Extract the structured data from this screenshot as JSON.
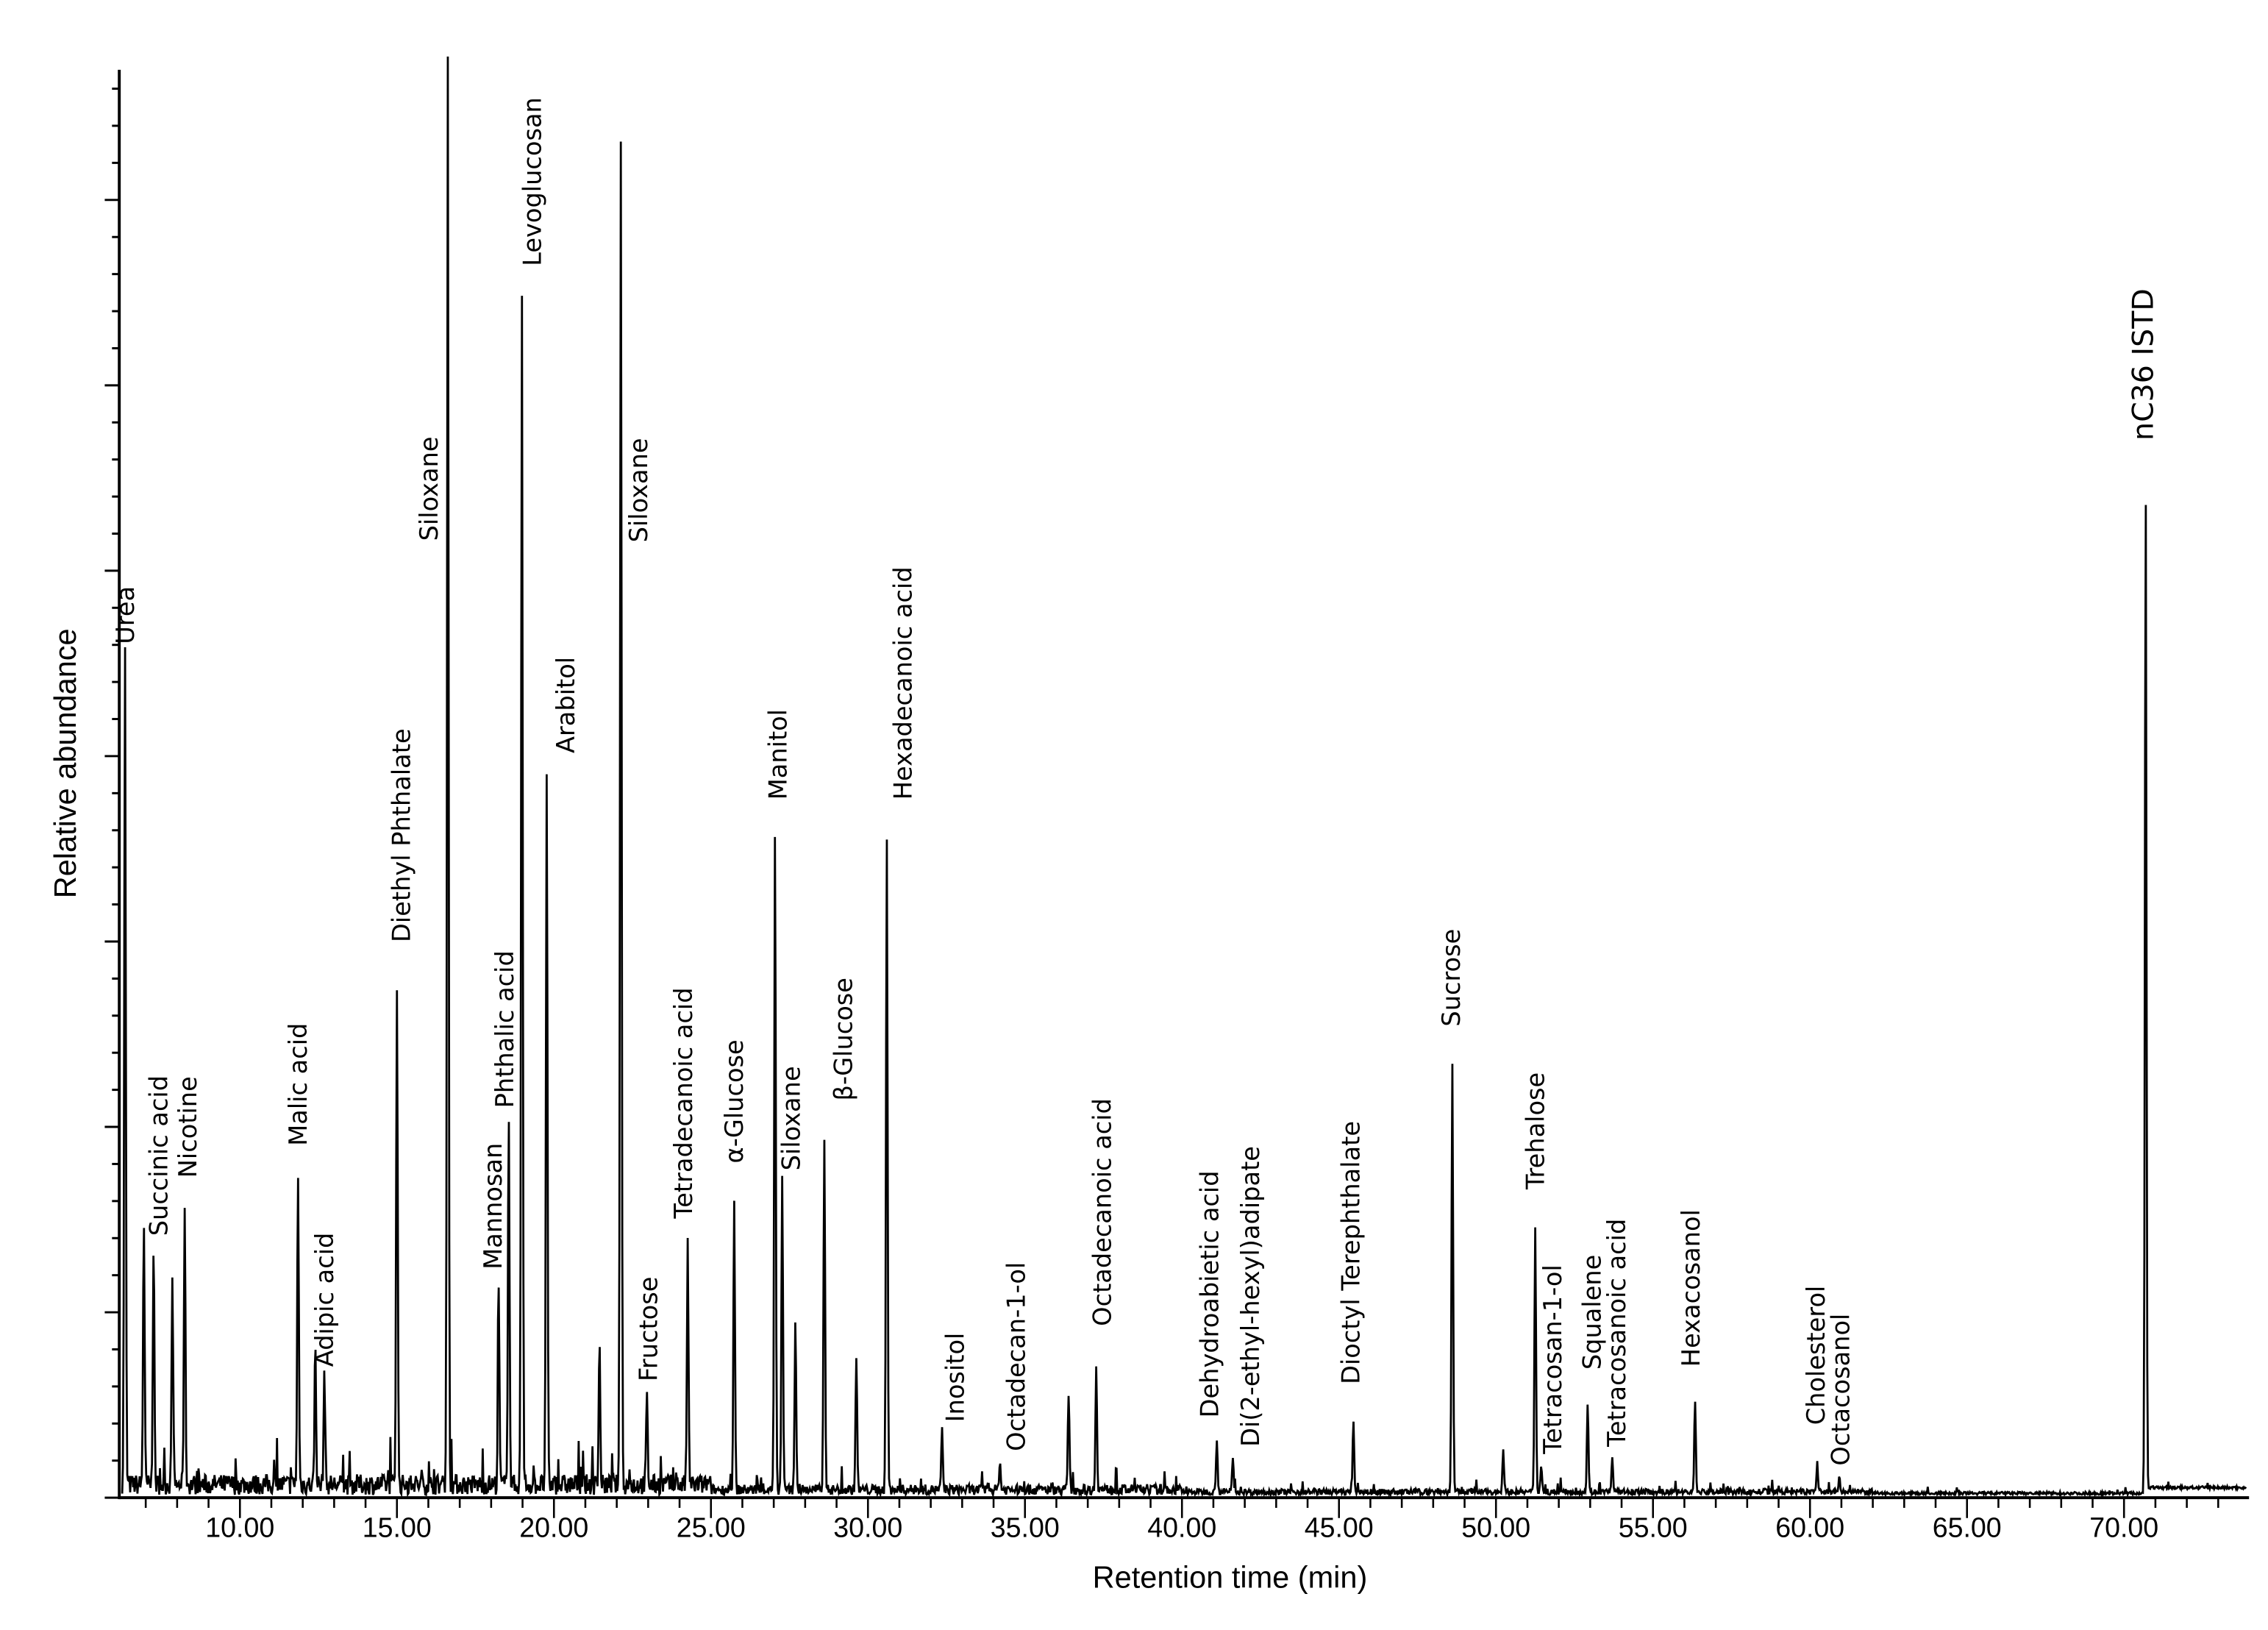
{
  "chart_data": {
    "type": "line",
    "title": "",
    "xlabel": "Retention time (min)",
    "ylabel": "Relative abundance",
    "xlim": [
      6.2,
      73.9
    ],
    "ylim": [
      0,
      100
    ],
    "x_ticks": [
      "10.00",
      "15.00",
      "20.00",
      "25.00",
      "30.00",
      "35.00",
      "40.00",
      "45.00",
      "50.00",
      "55.00",
      "60.00",
      "65.00",
      "70.00"
    ],
    "grid": false,
    "legend": "none",
    "peaks": [
      {
        "name": "Urea",
        "rt": 6.34,
        "abundance": 58.9
      },
      {
        "name": "Succinic  acid",
        "rt": 6.94,
        "abundance": 18.6
      },
      {
        "name": "Nicotine",
        "rt": 8.24,
        "abundance": 19.4
      },
      {
        "name": "Malic acid",
        "rt": 11.85,
        "abundance": 22.0
      },
      {
        "name": "Adipic acid",
        "rt": 12.69,
        "abundance": 7.9
      },
      {
        "name": "Diethyl Phthalate",
        "rt": 15.0,
        "abundance": 35.5
      },
      {
        "name": "Siloxane",
        "rt": 16.62,
        "abundance": 100
      },
      {
        "name": "Mannosan",
        "rt": 18.24,
        "abundance": 13.3
      },
      {
        "name": "Phthalic acid",
        "rt": 18.56,
        "abundance": 26.6
      },
      {
        "name": "Levoglucosan",
        "rt": 18.98,
        "abundance": 83.6
      },
      {
        "name": "Arabitol",
        "rt": 19.77,
        "abundance": 49.6
      },
      {
        "name": "Siloxane",
        "rt": 22.13,
        "abundance": 94.7
      },
      {
        "name": "Fructose",
        "rt": 22.96,
        "abundance": 6.1
      },
      {
        "name": "Tetradecanoic acid",
        "rt": 24.26,
        "abundance": 16.9
      },
      {
        "name": "α-Glucose",
        "rt": 25.74,
        "abundance": 20.0
      },
      {
        "name": "Manitol",
        "rt": 27.04,
        "abundance": 46.3
      },
      {
        "name": "Siloxane",
        "rt": 27.27,
        "abundance": 22.0
      },
      {
        "name": "β-Glucose",
        "rt": 28.61,
        "abundance": 24.9
      },
      {
        "name": "Hexadecanoic acid",
        "rt": 30.6,
        "abundance": 45.8
      },
      {
        "name": "Inositol",
        "rt": 32.36,
        "abundance": 4.1
      },
      {
        "name": "Octadecan-1-ol",
        "rt": 34.2,
        "abundance": 2.0
      },
      {
        "name": "Octadecanoic  acid",
        "rt": 37.27,
        "abundance": 8.7
      },
      {
        "name": "Dehydroabietic  acid",
        "rt": 41.11,
        "abundance": 3.8
      },
      {
        "name": "Di(2-ethyl-hexyl)adipate",
        "rt": 41.62,
        "abundance": 2.4
      },
      {
        "name": "Dioctyl Terephthalate",
        "rt": 45.46,
        "abundance": 4.8
      },
      {
        "name": "Sucrose",
        "rt": 48.61,
        "abundance": 30.2
      },
      {
        "name": "Trehalose",
        "rt": 51.25,
        "abundance": 18.7
      },
      {
        "name": "Tetracosan-1-ol",
        "rt": 51.44,
        "abundance": 2.0
      },
      {
        "name": "Squalene",
        "rt": 52.92,
        "abundance": 6.3
      },
      {
        "name": "Tetracosanoic  acid",
        "rt": 53.7,
        "abundance": 2.4
      },
      {
        "name": "Hexacosanol",
        "rt": 56.34,
        "abundance": 6.4
      },
      {
        "name": "Cholesterol",
        "rt": 60.23,
        "abundance": 2.0
      },
      {
        "name": "Octacosanol",
        "rt": 60.93,
        "abundance": 1.0
      },
      {
        "name": "nC36 ISTD",
        "rt": 70.69,
        "abundance": 70.3
      }
    ],
    "minor_peaks": [
      {
        "rt": 7.25,
        "abundance": 16.9
      },
      {
        "rt": 7.85,
        "abundance": 14.4
      },
      {
        "rt": 12.4,
        "abundance": 9.8
      },
      {
        "rt": 21.45,
        "abundance": 9.8
      },
      {
        "rt": 27.69,
        "abundance": 11.8
      },
      {
        "rt": 29.63,
        "abundance": 9.5
      },
      {
        "rt": 36.39,
        "abundance": 6.9
      },
      {
        "rt": 50.23,
        "abundance": 3.1
      }
    ]
  }
}
